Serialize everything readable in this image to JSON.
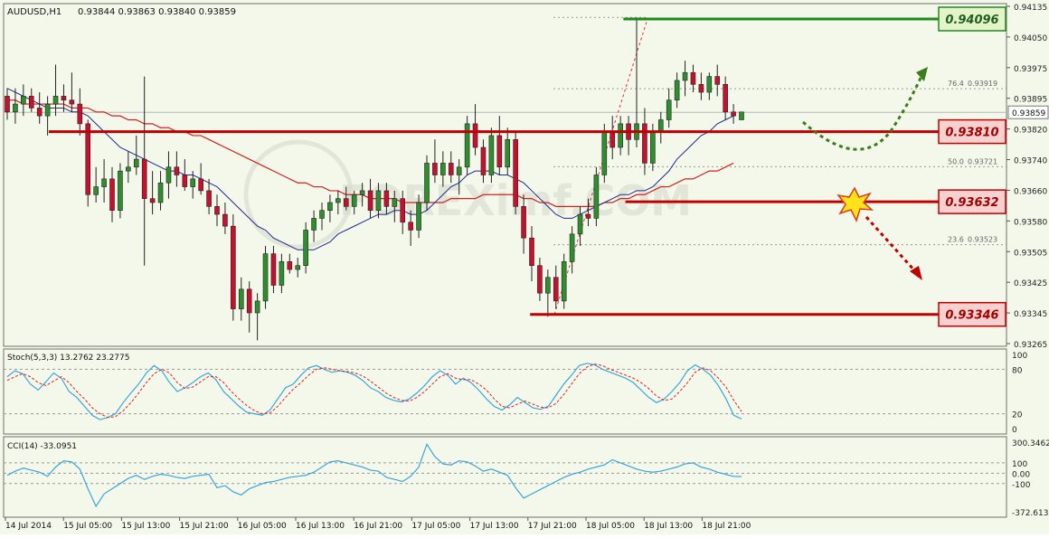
{
  "colors": {
    "background": "#f4f8ea",
    "bull_candle": "#2f8f2f",
    "bear_candle": "#c8102e",
    "ma_fast": "#1f2a8a",
    "ma_slow": "#d02020",
    "support_line": "#c00000",
    "resistance_line": "#1e8a1e",
    "stoch_main": "#3aa6d8",
    "stoch_signal": "#e02020",
    "cci_line": "#3aa6d8",
    "label_red_fill": "#f7d0d0",
    "label_green_fill": "#e4f4c8"
  },
  "header": {
    "symbol": "AUDUSD,H1",
    "ohlc": "0.93844 0.93863 0.93840 0.93859"
  },
  "watermark": "FOREXimf.COM",
  "chart_data": [
    {
      "type": "candlestick",
      "title": "AUDUSD,H1",
      "ylim": [
        0.93265,
        0.94135
      ],
      "y_ticks": [
        "0.94135",
        "0.94050",
        "0.93975",
        "0.93895",
        "0.93820",
        "0.93740",
        "0.93660",
        "0.93580",
        "0.93505",
        "0.93425",
        "0.93345",
        "0.93265"
      ],
      "current_price": "0.93859",
      "x_labels": [
        "14 Jul 2014",
        "15 Jul 05:00",
        "15 Jul 13:00",
        "15 Jul 21:00",
        "16 Jul 05:00",
        "16 Jul 13:00",
        "16 Jul 21:00",
        "17 Jul 05:00",
        "17 Jul 13:00",
        "17 Jul 21:00",
        "18 Jul 05:00",
        "18 Jul 13:00",
        "18 Jul 21:00"
      ],
      "candles": [
        [
          0.939,
          0.9392,
          0.9384,
          0.9386
        ],
        [
          0.9386,
          0.9392,
          0.9383,
          0.9388
        ],
        [
          0.9388,
          0.9393,
          0.9385,
          0.939
        ],
        [
          0.939,
          0.9392,
          0.9386,
          0.9387
        ],
        [
          0.9387,
          0.9391,
          0.9383,
          0.9385
        ],
        [
          0.9385,
          0.939,
          0.938,
          0.9388
        ],
        [
          0.9388,
          0.9398,
          0.9385,
          0.939
        ],
        [
          0.939,
          0.9393,
          0.9386,
          0.9389
        ],
        [
          0.9389,
          0.9396,
          0.9386,
          0.9388
        ],
        [
          0.9388,
          0.9392,
          0.938,
          0.9383
        ],
        [
          0.9383,
          0.9384,
          0.9362,
          0.9365
        ],
        [
          0.9365,
          0.9372,
          0.9363,
          0.9367
        ],
        [
          0.9367,
          0.9374,
          0.9363,
          0.9369
        ],
        [
          0.9369,
          0.9372,
          0.9358,
          0.9361
        ],
        [
          0.9361,
          0.9373,
          0.9359,
          0.9371
        ],
        [
          0.9371,
          0.9376,
          0.9368,
          0.9372
        ],
        [
          0.9372,
          0.938,
          0.937,
          0.9374
        ],
        [
          0.9374,
          0.9395,
          0.9347,
          0.9364
        ],
        [
          0.9364,
          0.9371,
          0.936,
          0.9363
        ],
        [
          0.9363,
          0.9371,
          0.9361,
          0.9368
        ],
        [
          0.9368,
          0.9376,
          0.9364,
          0.9372
        ],
        [
          0.9372,
          0.9376,
          0.9367,
          0.937
        ],
        [
          0.937,
          0.9374,
          0.9366,
          0.9367
        ],
        [
          0.9367,
          0.9371,
          0.9364,
          0.9369
        ],
        [
          0.9369,
          0.9373,
          0.9365,
          0.9366
        ],
        [
          0.9366,
          0.9369,
          0.936,
          0.9362
        ],
        [
          0.9362,
          0.9365,
          0.9357,
          0.936
        ],
        [
          0.936,
          0.9363,
          0.9355,
          0.9357
        ],
        [
          0.9357,
          0.936,
          0.9333,
          0.9336
        ],
        [
          0.9336,
          0.9344,
          0.9333,
          0.9341
        ],
        [
          0.9341,
          0.9343,
          0.933,
          0.9335
        ],
        [
          0.9335,
          0.934,
          0.9328,
          0.9338
        ],
        [
          0.9338,
          0.9352,
          0.9336,
          0.935
        ],
        [
          0.935,
          0.9352,
          0.934,
          0.9342
        ],
        [
          0.9342,
          0.935,
          0.934,
          0.9348
        ],
        [
          0.9348,
          0.935,
          0.9345,
          0.9346
        ],
        [
          0.9346,
          0.9349,
          0.9344,
          0.9347
        ],
        [
          0.9347,
          0.9358,
          0.9345,
          0.9356
        ],
        [
          0.9356,
          0.9361,
          0.9353,
          0.9359
        ],
        [
          0.9359,
          0.9363,
          0.9356,
          0.9361
        ],
        [
          0.9361,
          0.9365,
          0.9358,
          0.9363
        ],
        [
          0.9363,
          0.9366,
          0.936,
          0.9364
        ],
        [
          0.9364,
          0.9367,
          0.9361,
          0.9362
        ],
        [
          0.9362,
          0.9366,
          0.936,
          0.9365
        ],
        [
          0.9365,
          0.9368,
          0.9362,
          0.9366
        ],
        [
          0.9366,
          0.9369,
          0.9359,
          0.9361
        ],
        [
          0.9361,
          0.9368,
          0.9359,
          0.9366
        ],
        [
          0.9366,
          0.9368,
          0.936,
          0.9362
        ],
        [
          0.9362,
          0.9366,
          0.9358,
          0.9364
        ],
        [
          0.9364,
          0.9366,
          0.9355,
          0.9358
        ],
        [
          0.9358,
          0.9361,
          0.9352,
          0.9356
        ],
        [
          0.9356,
          0.9365,
          0.9354,
          0.9363
        ],
        [
          0.9363,
          0.9375,
          0.9361,
          0.9373
        ],
        [
          0.9373,
          0.9379,
          0.9368,
          0.937
        ],
        [
          0.937,
          0.9376,
          0.9367,
          0.9373
        ],
        [
          0.9373,
          0.9376,
          0.9368,
          0.937
        ],
        [
          0.937,
          0.9374,
          0.9365,
          0.9372
        ],
        [
          0.9372,
          0.9385,
          0.937,
          0.9383
        ],
        [
          0.9383,
          0.9388,
          0.9375,
          0.9377
        ],
        [
          0.9377,
          0.9379,
          0.9368,
          0.937
        ],
        [
          0.937,
          0.9382,
          0.9368,
          0.938
        ],
        [
          0.938,
          0.9385,
          0.937,
          0.9372
        ],
        [
          0.9372,
          0.9382,
          0.937,
          0.9379
        ],
        [
          0.9379,
          0.9381,
          0.936,
          0.9362
        ],
        [
          0.9362,
          0.9365,
          0.935,
          0.9354
        ],
        [
          0.9354,
          0.9357,
          0.9343,
          0.9347
        ],
        [
          0.9347,
          0.9349,
          0.9338,
          0.934
        ],
        [
          0.934,
          0.9346,
          0.9334,
          0.9344
        ],
        [
          0.9344,
          0.9347,
          0.9336,
          0.9338
        ],
        [
          0.9338,
          0.935,
          0.9336,
          0.9348
        ],
        [
          0.9348,
          0.9357,
          0.9345,
          0.9355
        ],
        [
          0.9355,
          0.9362,
          0.9352,
          0.936
        ],
        [
          0.936,
          0.9364,
          0.9357,
          0.9359
        ],
        [
          0.9359,
          0.9372,
          0.9357,
          0.937
        ],
        [
          0.937,
          0.9383,
          0.9368,
          0.9381
        ],
        [
          0.9381,
          0.9385,
          0.9374,
          0.9377
        ],
        [
          0.9377,
          0.9385,
          0.9375,
          0.9383
        ],
        [
          0.9383,
          0.9385,
          0.9375,
          0.9379
        ],
        [
          0.9379,
          0.941,
          0.9377,
          0.9383
        ],
        [
          0.9383,
          0.9387,
          0.937,
          0.9373
        ],
        [
          0.9373,
          0.9383,
          0.9371,
          0.9381
        ],
        [
          0.9381,
          0.9386,
          0.9378,
          0.9384
        ],
        [
          0.9384,
          0.9392,
          0.9382,
          0.9389
        ],
        [
          0.9389,
          0.9396,
          0.9387,
          0.9394
        ],
        [
          0.9394,
          0.9399,
          0.939,
          0.9396
        ],
        [
          0.9396,
          0.9398,
          0.9391,
          0.9393
        ],
        [
          0.9393,
          0.9396,
          0.9389,
          0.9391
        ],
        [
          0.9391,
          0.9396,
          0.9389,
          0.9395
        ],
        [
          0.9395,
          0.9398,
          0.939,
          0.9393
        ],
        [
          0.9393,
          0.9395,
          0.9384,
          0.9386
        ],
        [
          0.9386,
          0.9388,
          0.9383,
          0.9385
        ],
        [
          0.9384,
          0.9386,
          0.9384,
          0.9386
        ]
      ],
      "ma_fast": [
        0.9392,
        0.9391,
        0.939,
        0.9389,
        0.9388,
        0.9387,
        0.9387,
        0.9387,
        0.9386,
        0.9386,
        0.9385,
        0.9383,
        0.9381,
        0.9379,
        0.9377,
        0.9376,
        0.9375,
        0.9374,
        0.9373,
        0.9372,
        0.9371,
        0.9371,
        0.937,
        0.937,
        0.9369,
        0.9368,
        0.9367,
        0.9365,
        0.9363,
        0.9361,
        0.9359,
        0.9357,
        0.9356,
        0.9354,
        0.9353,
        0.9352,
        0.9351,
        0.9351,
        0.9351,
        0.9352,
        0.9353,
        0.9355,
        0.9356,
        0.9357,
        0.9358,
        0.9359,
        0.936,
        0.936,
        0.9361,
        0.9361,
        0.936,
        0.936,
        0.9361,
        0.9363,
        0.9365,
        0.9367,
        0.9368,
        0.937,
        0.9371,
        0.9371,
        0.9371,
        0.937,
        0.937,
        0.9369,
        0.9368,
        0.9366,
        0.9364,
        0.9362,
        0.936,
        0.9359,
        0.9359,
        0.936,
        0.9361,
        0.9362,
        0.9363,
        0.9364,
        0.9365,
        0.9365,
        0.9366,
        0.9366,
        0.9367,
        0.9369,
        0.9371,
        0.9374,
        0.9376,
        0.9378,
        0.938,
        0.9381,
        0.9383,
        0.9384,
        0.9385
      ],
      "ma_slow": [
        0.9389,
        0.9389,
        0.9388,
        0.9388,
        0.9388,
        0.9388,
        0.9388,
        0.9388,
        0.9387,
        0.9387,
        0.9387,
        0.9386,
        0.9386,
        0.9385,
        0.9385,
        0.9384,
        0.9384,
        0.9383,
        0.9383,
        0.9382,
        0.9382,
        0.9381,
        0.9381,
        0.938,
        0.938,
        0.9379,
        0.9378,
        0.9377,
        0.9376,
        0.9375,
        0.9374,
        0.9373,
        0.9372,
        0.9371,
        0.937,
        0.9369,
        0.9368,
        0.9368,
        0.9367,
        0.9367,
        0.9366,
        0.9366,
        0.9365,
        0.9365,
        0.9365,
        0.9364,
        0.9364,
        0.9364,
        0.9364,
        0.9363,
        0.9363,
        0.9363,
        0.9363,
        0.9363,
        0.9363,
        0.9364,
        0.9364,
        0.9364,
        0.9364,
        0.9365,
        0.9365,
        0.9365,
        0.9365,
        0.9365,
        0.9364,
        0.9364,
        0.9363,
        0.9363,
        0.9362,
        0.9362,
        0.9362,
        0.9362,
        0.9362,
        0.9362,
        0.9363,
        0.9363,
        0.9364,
        0.9364,
        0.9365,
        0.9365,
        0.9366,
        0.9367,
        0.9367,
        0.9368,
        0.9369,
        0.9369,
        0.937,
        0.9371,
        0.9371,
        0.9372,
        0.9373
      ],
      "levels": [
        {
          "label": "0.94096",
          "value": 0.94096,
          "color": "green",
          "x_from": 0.618
        },
        {
          "label": "0.93810",
          "value": 0.9381,
          "color": "red",
          "x_from": 0.045
        },
        {
          "label": "0.93632",
          "value": 0.93632,
          "color": "red",
          "x_from": 0.62
        },
        {
          "label": "0.93346",
          "value": 0.93346,
          "color": "red",
          "x_from": 0.525
        }
      ],
      "fibonacci": [
        {
          "ratio": "76.4",
          "price": "0.93919",
          "value": 0.93919
        },
        {
          "ratio": "50.0",
          "price": "0.93721",
          "value": 0.93721
        },
        {
          "ratio": "23.6",
          "price": "0.93523",
          "value": 0.93523
        }
      ]
    },
    {
      "type": "line",
      "title": "Stoch(5,3,3) 13.2762 23.2775",
      "ylim": [
        0,
        100
      ],
      "y_ticks": [
        "100",
        "80",
        "20",
        "0"
      ],
      "series": [
        {
          "name": "main",
          "values": [
            70,
            78,
            74,
            60,
            52,
            63,
            75,
            68,
            50,
            42,
            30,
            18,
            12,
            15,
            20,
            35,
            48,
            60,
            75,
            85,
            78,
            62,
            50,
            55,
            62,
            70,
            75,
            66,
            50,
            40,
            30,
            22,
            20,
            18,
            25,
            40,
            55,
            60,
            72,
            82,
            85,
            80,
            76,
            78,
            76,
            72,
            65,
            55,
            50,
            42,
            38,
            36,
            40,
            48,
            58,
            70,
            78,
            72,
            60,
            68,
            62,
            52,
            40,
            30,
            25,
            32,
            42,
            35,
            28,
            26,
            30,
            45,
            60,
            72,
            85,
            88,
            86,
            80,
            76,
            72,
            68,
            62,
            52,
            42,
            35,
            40,
            50,
            62,
            78,
            86,
            80,
            72,
            58,
            40,
            18,
            13
          ]
        },
        {
          "name": "signal",
          "values": [
            65,
            70,
            74,
            70,
            62,
            58,
            64,
            70,
            62,
            50,
            40,
            28,
            20,
            15,
            16,
            24,
            35,
            48,
            62,
            74,
            80,
            75,
            62,
            54,
            56,
            63,
            70,
            70,
            62,
            50,
            40,
            31,
            24,
            20,
            21,
            30,
            42,
            53,
            62,
            72,
            80,
            82,
            80,
            78,
            77,
            75,
            71,
            64,
            56,
            48,
            42,
            38,
            37,
            42,
            50,
            60,
            70,
            74,
            68,
            66,
            66,
            60,
            52,
            40,
            30,
            28,
            33,
            37,
            33,
            29,
            28,
            34,
            46,
            60,
            74,
            83,
            87,
            85,
            80,
            76,
            72,
            68,
            62,
            54,
            44,
            38,
            40,
            50,
            62,
            76,
            82,
            78,
            68,
            56,
            38,
            23
          ]
        }
      ]
    },
    {
      "type": "line",
      "title": "CCI(14) -33.0951",
      "ylim": [
        -372.613,
        300.3462
      ],
      "y_ticks": [
        "300.3462",
        "100",
        "0.00",
        "-100",
        "-372.613"
      ],
      "series": [
        {
          "name": "cci",
          "values": [
            -20,
            20,
            50,
            30,
            10,
            -30,
            60,
            120,
            110,
            40,
            -150,
            -320,
            -200,
            -150,
            -100,
            -50,
            -20,
            -60,
            -30,
            -10,
            -20,
            -40,
            -50,
            -30,
            -20,
            -10,
            -140,
            -120,
            -180,
            -210,
            -150,
            -120,
            -90,
            -80,
            -60,
            -40,
            -30,
            -20,
            10,
            60,
            110,
            120,
            100,
            80,
            60,
            30,
            20,
            -40,
            -60,
            -80,
            -30,
            60,
            280,
            160,
            90,
            80,
            120,
            110,
            70,
            20,
            40,
            10,
            -20,
            -140,
            -240,
            -200,
            -160,
            -120,
            -80,
            -40,
            -10,
            10,
            40,
            60,
            80,
            130,
            100,
            70,
            40,
            20,
            10,
            20,
            40,
            60,
            90,
            100,
            60,
            40,
            10,
            -10,
            -30,
            -33
          ]
        }
      ]
    }
  ]
}
